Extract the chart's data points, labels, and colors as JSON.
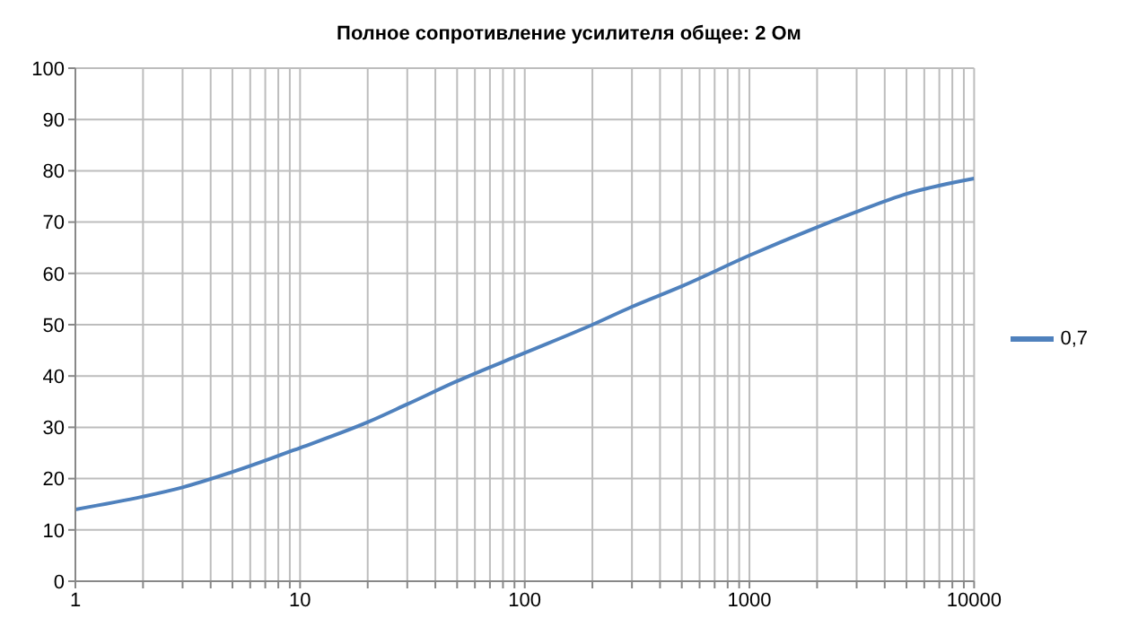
{
  "chart_data": {
    "type": "line",
    "title": "Полное сопротивление усилителя общее: 2 Ом",
    "x": [
      1,
      2,
      3,
      5,
      10,
      20,
      30,
      50,
      100,
      200,
      300,
      500,
      1000,
      2000,
      3000,
      5000,
      10000
    ],
    "series": [
      {
        "name": "0,7",
        "color": "#4f81bd",
        "values": [
          14,
          16.5,
          18.3,
          21.3,
          26,
          31,
          34.5,
          39,
          44.5,
          50,
          53.5,
          57.5,
          63.5,
          69,
          72,
          75.5,
          78.5
        ]
      }
    ],
    "log": "x",
    "xlim": [
      1,
      10000
    ],
    "xticks": [
      1,
      {
        "value": 2,
        "label": null
      },
      {
        "value": 3,
        "label": null
      },
      {
        "value": 4,
        "label": null
      },
      {
        "value": 5,
        "label": null
      },
      {
        "value": 6,
        "label": null
      },
      {
        "value": 7,
        "label": null
      },
      {
        "value": 8,
        "label": null
      },
      {
        "value": 9,
        "label": null
      },
      10,
      {
        "value": 20,
        "label": null
      },
      {
        "value": 30,
        "label": null
      },
      {
        "value": 40,
        "label": null
      },
      {
        "value": 50,
        "label": null
      },
      {
        "value": 60,
        "label": null
      },
      {
        "value": 70,
        "label": null
      },
      {
        "value": 80,
        "label": null
      },
      {
        "value": 90,
        "label": null
      },
      100,
      {
        "value": 200,
        "label": null
      },
      {
        "value": 300,
        "label": null
      },
      {
        "value": 400,
        "label": null
      },
      {
        "value": 500,
        "label": null
      },
      {
        "value": 600,
        "label": null
      },
      {
        "value": 700,
        "label": null
      },
      {
        "value": 800,
        "label": null
      },
      {
        "value": 900,
        "label": null
      },
      1000,
      {
        "value": 2000,
        "label": null
      },
      {
        "value": 3000,
        "label": null
      },
      {
        "value": 4000,
        "label": null
      },
      {
        "value": 5000,
        "label": null
      },
      {
        "value": 6000,
        "label": null
      },
      {
        "value": 7000,
        "label": null
      },
      {
        "value": 8000,
        "label": null
      },
      {
        "value": 9000,
        "label": null
      },
      10000
    ],
    "ylim": [
      0,
      100
    ],
    "yticks": [
      0,
      10,
      20,
      30,
      40,
      50,
      60,
      70,
      80,
      90,
      100
    ],
    "grid": true,
    "legend": "right",
    "marker": "none",
    "line_style": "solid"
  }
}
